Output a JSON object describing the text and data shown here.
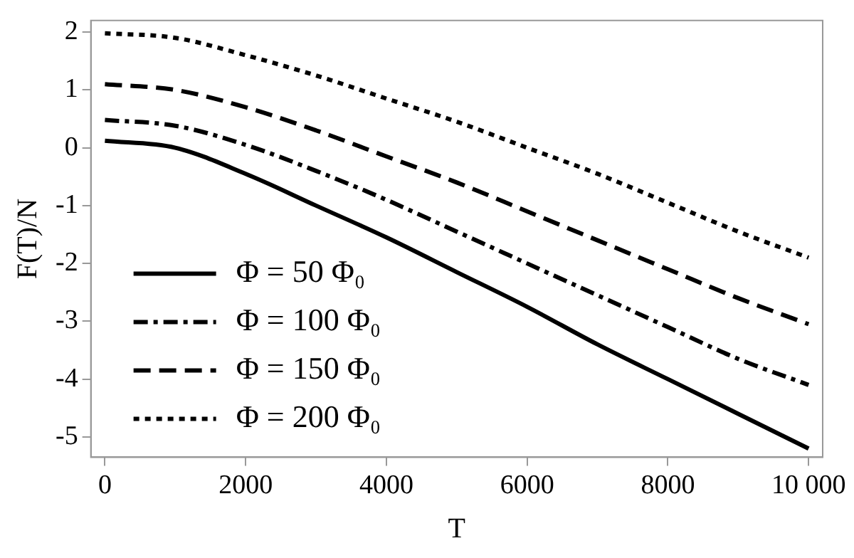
{
  "chart_data": {
    "type": "line",
    "xlabel": "T",
    "ylabel": "F(T)/N",
    "x": [
      0,
      1000,
      2000,
      3000,
      4000,
      5000,
      6000,
      7000,
      8000,
      9000,
      10000
    ],
    "series": [
      {
        "name": "Φ = 50 Φ₀",
        "color": "#000000",
        "line_style": "solid",
        "values": [
          0.12,
          0.0,
          -0.45,
          -1.0,
          -1.55,
          -2.15,
          -2.75,
          -3.4,
          -4.0,
          -4.6,
          -5.2
        ]
      },
      {
        "name": "Φ = 100 Φ₀",
        "color": "#000000",
        "line_style": "dashdot",
        "values": [
          0.48,
          0.38,
          0.05,
          -0.4,
          -0.9,
          -1.45,
          -2.0,
          -2.55,
          -3.1,
          -3.65,
          -4.1
        ]
      },
      {
        "name": "Φ = 150 Φ₀",
        "color": "#000000",
        "line_style": "dashed",
        "values": [
          1.1,
          1.0,
          0.7,
          0.3,
          -0.15,
          -0.6,
          -1.1,
          -1.6,
          -2.1,
          -2.6,
          -3.05
        ]
      },
      {
        "name": "Φ = 200 Φ₀",
        "color": "#000000",
        "line_style": "dotted",
        "values": [
          1.98,
          1.9,
          1.6,
          1.25,
          0.85,
          0.45,
          0.0,
          -0.45,
          -0.95,
          -1.45,
          -1.9
        ]
      }
    ],
    "xlim": [
      -200,
      10200
    ],
    "xticks": [
      0,
      2000,
      4000,
      6000,
      8000,
      {
        "value": 10000,
        "label": "10 000"
      }
    ],
    "ylim": [
      -5.35,
      2.2
    ],
    "yticks": [
      -5,
      -4,
      -3,
      -2,
      -1,
      0,
      1,
      2
    ],
    "grid": false,
    "legend": "bottom left",
    "marker": "none"
  }
}
